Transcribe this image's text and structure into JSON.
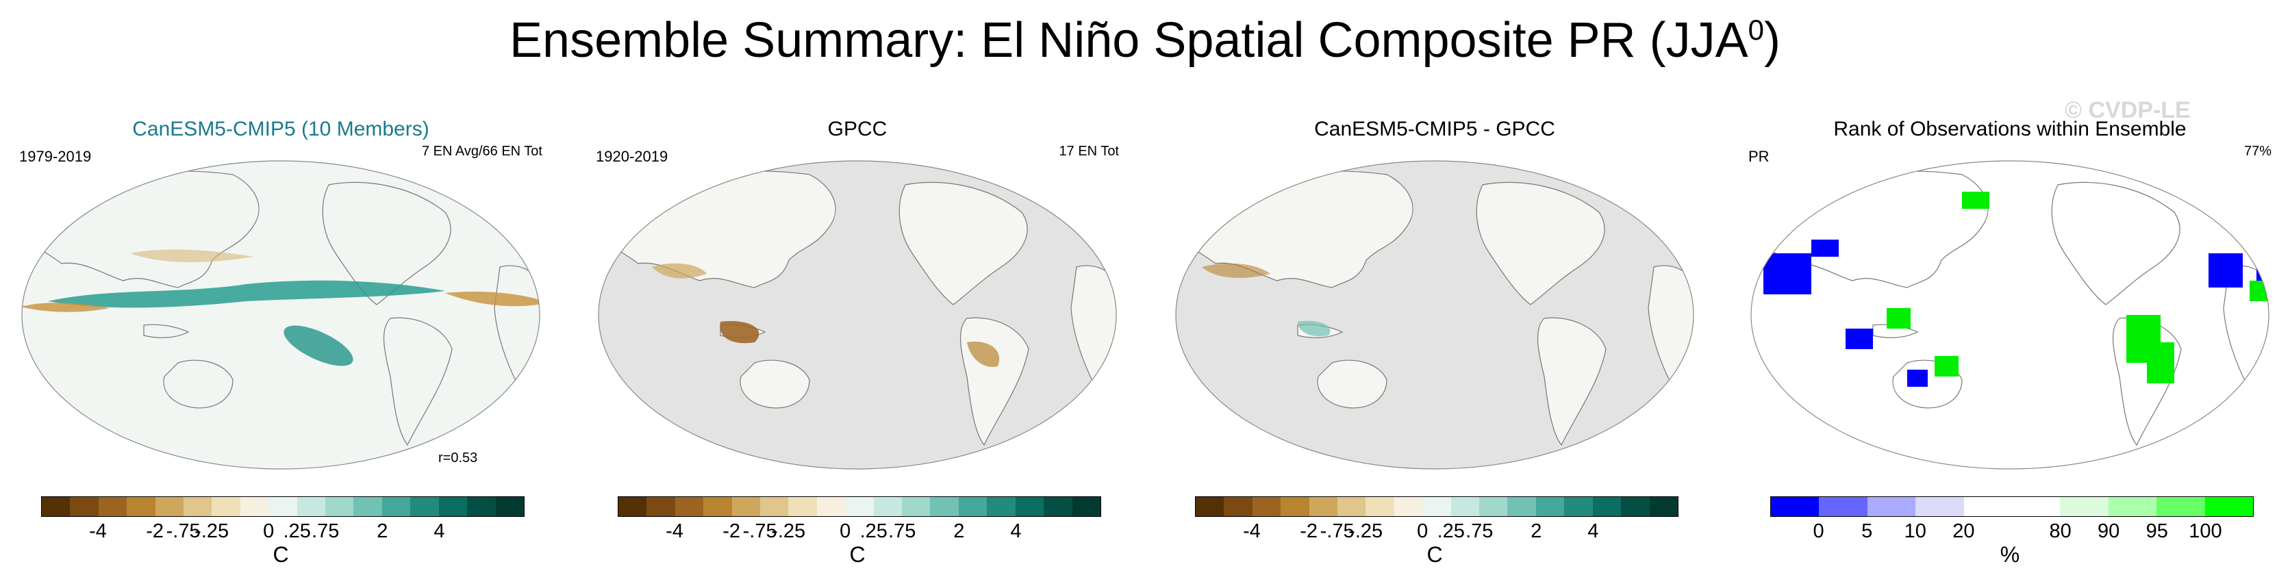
{
  "title_main": "Ensemble Summary: El Niño Spatial Composite PR (JJA",
  "title_sup": "0",
  "title_close": ")",
  "watermark": "© CVDP-LE",
  "panels": [
    {
      "title": "CanESM5-CMIP5 (10 Members)",
      "title_color": "#1a7a8c",
      "left_text": "1979-2019",
      "right_text": "7 EN Avg/66 EN Tot",
      "corr": "r=0.53",
      "unit": "C",
      "type": "model"
    },
    {
      "title": "GPCC",
      "title_color": "#000000",
      "left_text": "1920-2019",
      "right_text": "17 EN Tot",
      "corr": "",
      "unit": "C",
      "type": "obs"
    },
    {
      "title": "CanESM5-CMIP5 - GPCC",
      "title_color": "#000000",
      "left_text": "",
      "right_text": "",
      "corr": "",
      "unit": "C",
      "type": "diff"
    },
    {
      "title": "Rank of Observations within Ensemble",
      "title_color": "#000000",
      "left_text": "PR",
      "right_text": "77%",
      "corr": "",
      "unit": "%",
      "type": "rank"
    }
  ],
  "colorbar_diverging": {
    "colors": [
      "#543005",
      "#7a4a12",
      "#9c6420",
      "#b8842f",
      "#cfa75c",
      "#e0c58c",
      "#efe0b8",
      "#f7f0e0",
      "#eaf4f0",
      "#c7e8e0",
      "#a0d8cc",
      "#72c2b4",
      "#44a89a",
      "#218b7c",
      "#0b6e60",
      "#044f44",
      "#013a30"
    ],
    "labels": [
      "-4",
      "-2",
      "-.75",
      "-.25",
      "0",
      ".25",
      ".75",
      "2",
      "4"
    ]
  },
  "colorbar_rank": {
    "colors": [
      "#0000ff",
      "#6666ff",
      "#aaaaff",
      "#dcdcfa",
      "#ffffff",
      "#ffffff",
      "#dcfadc",
      "#aaffaa",
      "#66ff66",
      "#00ff00"
    ],
    "labels": [
      "0",
      "5",
      "10",
      "20",
      "80",
      "90",
      "95",
      "100"
    ]
  }
}
